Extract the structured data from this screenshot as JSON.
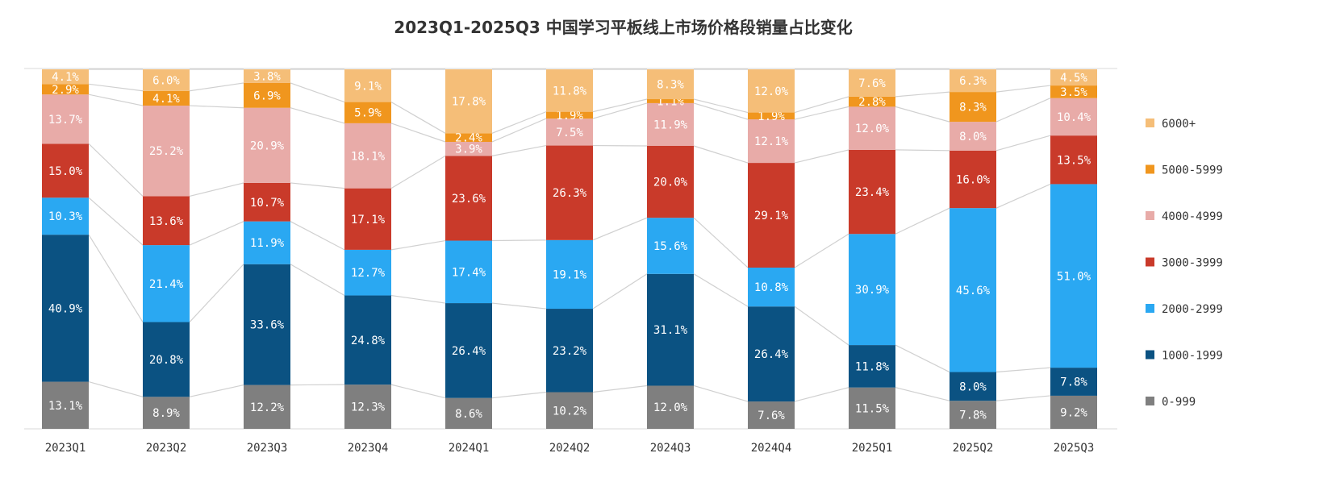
{
  "chart_data": {
    "type": "bar",
    "stacked": "percent",
    "title": "2023Q1-2025Q3 中国学习平板线上市场价格段销量占比变化",
    "xlabel": "",
    "ylabel": "",
    "ylim": [
      0,
      100
    ],
    "grid": false,
    "legend": "right",
    "categories": [
      "2023Q1",
      "2023Q2",
      "2023Q3",
      "2023Q4",
      "2024Q1",
      "2024Q2",
      "2024Q3",
      "2024Q4",
      "2025Q1",
      "2025Q2",
      "2025Q3"
    ],
    "series": [
      {
        "name": "0-999",
        "color": "#7F7F7F",
        "values": [
          13.1,
          8.9,
          12.2,
          12.3,
          8.6,
          10.2,
          12.0,
          7.6,
          11.5,
          7.8,
          9.2
        ]
      },
      {
        "name": "1000-1999",
        "color": "#0B5282",
        "values": [
          40.9,
          20.8,
          33.6,
          24.8,
          26.4,
          23.2,
          31.1,
          26.4,
          11.8,
          8.0,
          7.8
        ]
      },
      {
        "name": "2000-2999",
        "color": "#2AA8F2",
        "values": [
          10.3,
          21.4,
          11.9,
          12.7,
          17.4,
          19.1,
          15.6,
          10.8,
          30.9,
          45.6,
          51.0
        ]
      },
      {
        "name": "3000-3999",
        "color": "#C93A2A",
        "values": [
          15.0,
          13.6,
          10.7,
          17.1,
          23.6,
          26.3,
          20.0,
          29.1,
          23.4,
          16.0,
          13.5
        ]
      },
      {
        "name": "4000-4999",
        "color": "#E8ABA8",
        "values": [
          13.7,
          25.2,
          20.9,
          18.1,
          3.9,
          7.5,
          11.9,
          12.1,
          12.0,
          8.0,
          10.4
        ]
      },
      {
        "name": "5000-5999",
        "color": "#F0961E",
        "values": [
          2.9,
          4.1,
          6.9,
          5.9,
          2.4,
          1.9,
          1.1,
          1.9,
          2.8,
          8.3,
          3.5
        ]
      },
      {
        "name": "6000+",
        "color": "#F5BE78",
        "values": [
          4.1,
          6.0,
          3.8,
          9.1,
          17.8,
          11.8,
          8.3,
          12.0,
          7.6,
          6.3,
          4.5
        ]
      }
    ]
  }
}
